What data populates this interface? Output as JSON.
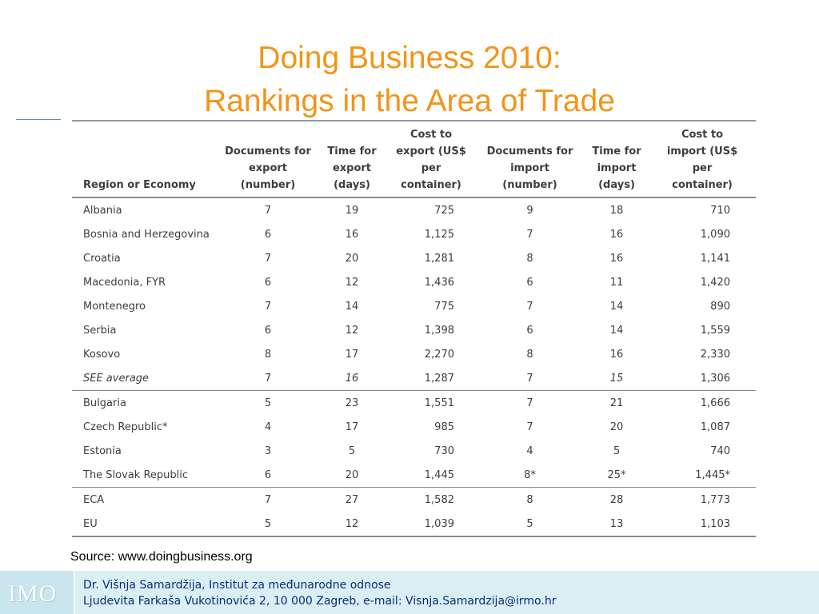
{
  "title": {
    "line1": "Doing Business 2010:",
    "line2": "Rankings in the Area of Trade"
  },
  "table": {
    "headers": [
      [
        "Region or Economy"
      ],
      [
        "Documents for",
        "export",
        "(number)"
      ],
      [
        "Time for",
        "export",
        "(days)"
      ],
      [
        "Cost to",
        "export (US$",
        "per",
        "container)"
      ],
      [
        "Documents for",
        "import",
        "(number)"
      ],
      [
        "Time for",
        "import",
        "(days)"
      ],
      [
        "Cost to",
        "import (US$",
        "per",
        "container)"
      ]
    ],
    "rows": [
      [
        "Albania",
        "7",
        "19",
        "725",
        "9",
        "18",
        "710"
      ],
      [
        "Bosnia and Herzegovina",
        "6",
        "16",
        "1,125",
        "7",
        "16",
        "1,090"
      ],
      [
        "Croatia",
        "7",
        "20",
        "1,281",
        "8",
        "16",
        "1,141"
      ],
      [
        "Macedonia, FYR",
        "6",
        "12",
        "1,436",
        "6",
        "11",
        "1,420"
      ],
      [
        "Montenegro",
        "7",
        "14",
        "775",
        "7",
        "14",
        "890"
      ],
      [
        "Serbia",
        "6",
        "12",
        "1,398",
        "6",
        "14",
        "1,559"
      ],
      [
        "Kosovo",
        "8",
        "17",
        "2,270",
        "8",
        "16",
        "2,330"
      ],
      [
        "SEE average",
        "7",
        "16",
        "1,287",
        "7",
        "15",
        "1,306"
      ],
      [
        "Bulgaria",
        "5",
        "23",
        "1,551",
        "7",
        "21",
        "1,666"
      ],
      [
        "Czech Republic*",
        "4",
        "17",
        "985",
        "7",
        "20",
        "1,087"
      ],
      [
        "Estonia",
        "3",
        "5",
        "730",
        "4",
        "5",
        "740"
      ],
      [
        "The Slovak Republic",
        "6",
        "20",
        "1,445",
        "8*",
        "25*",
        "1,445*"
      ],
      [
        "ECA",
        "7",
        "27",
        "1,582",
        "8",
        "28",
        "1,773"
      ],
      [
        "EU",
        "5",
        "12",
        "1,039",
        "5",
        "13",
        "1,103"
      ]
    ]
  },
  "source": "Source: www.doingbusiness.org",
  "footer": {
    "logo": "IMO",
    "line1": "Dr. Višnja Samardžija, Institut za međunarodne odnose",
    "line2": "Ljudevita Farkaša Vukotinovića 2, 10 000 Zagreb, e-mail: Visnja.Samardzija@irmo.hr"
  },
  "colors": {
    "title": "#f29418",
    "footer_bg": "#dbeef3",
    "footer_text": "#0a2a7a"
  }
}
